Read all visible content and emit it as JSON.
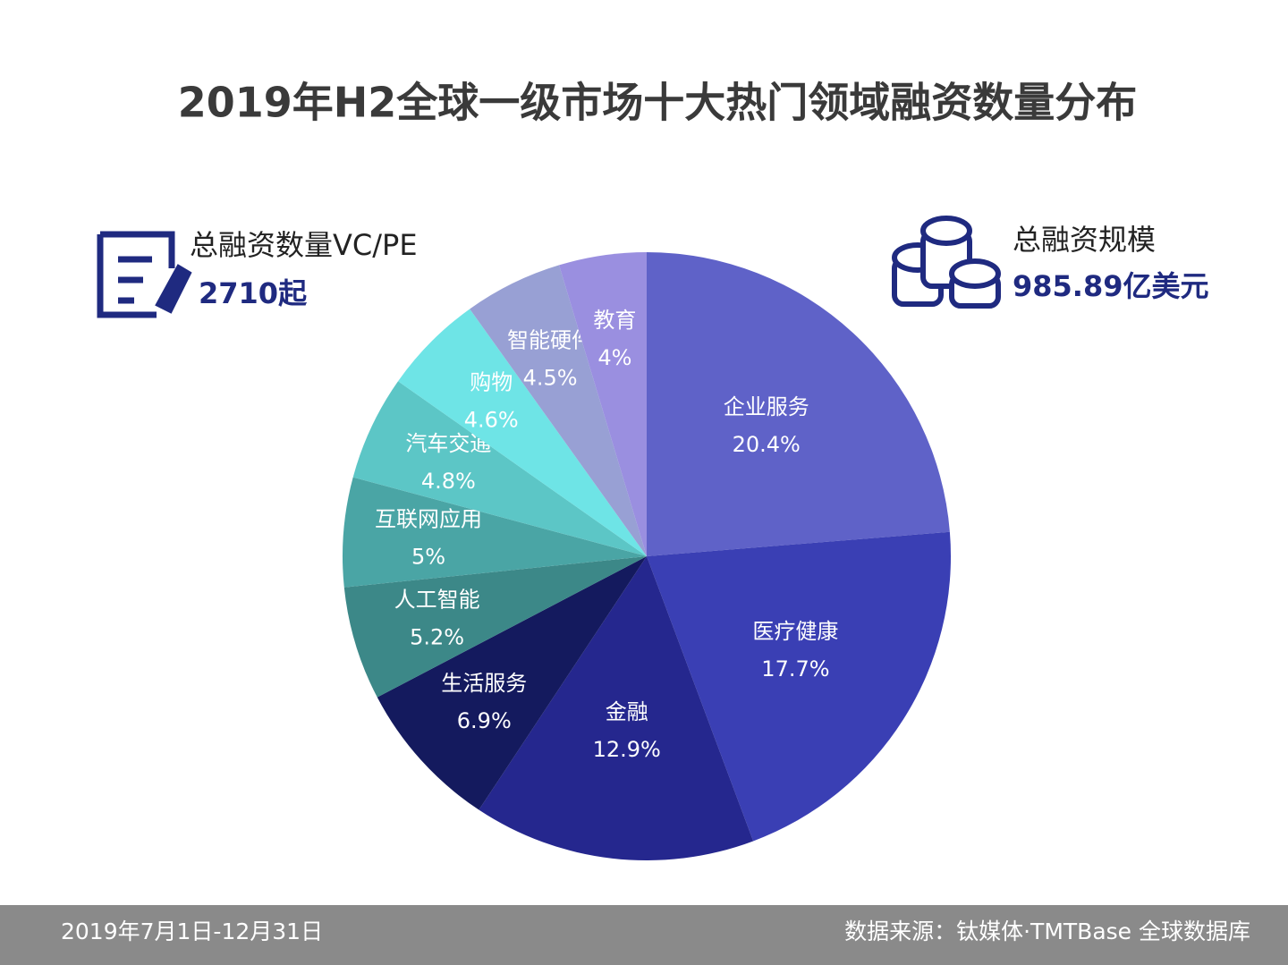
{
  "chart_data": {
    "type": "pie",
    "title": "2019年H2全球一级市场十大热门领域融资数量分布",
    "categories": [
      "企业服务",
      "医疗健康",
      "金融",
      "生活服务",
      "人工智能",
      "互联网应用",
      "汽车交通",
      "购物",
      "智能硬件",
      "教育"
    ],
    "values": [
      20.4,
      17.7,
      12.9,
      6.9,
      5.2,
      5,
      4.8,
      4.6,
      4.5,
      4
    ],
    "value_labels": [
      "20.4%",
      "17.7%",
      "12.9%",
      "6.9%",
      "5.2%",
      "5%",
      "4.8%",
      "4.6%",
      "4.5%",
      "4%"
    ],
    "colors": [
      "#5f62c8",
      "#3a3fb4",
      "#25278e",
      "#141a5e",
      "#3c8888",
      "#4aa5a5",
      "#5cc6c6",
      "#6ee4e6",
      "#98a0d4",
      "#9a8fe0"
    ]
  },
  "stats": [
    {
      "label": "总融资数量VC/PE",
      "value": "2710起"
    },
    {
      "label": "总融资规模",
      "value": "985.89亿美元"
    }
  ],
  "footer": {
    "period": "2019年7月1日-12月31日",
    "source": "数据来源：钛媒体·TMTBase 全球数据库"
  }
}
